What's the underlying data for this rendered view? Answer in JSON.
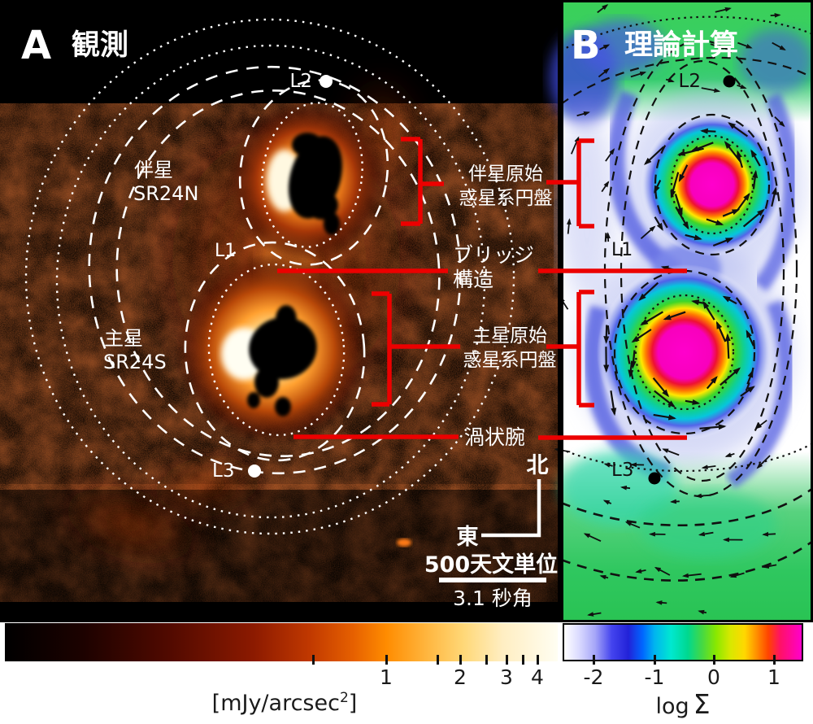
{
  "figure": {
    "panel_a": {
      "panel_letter": "A",
      "panel_title": "観測",
      "companion_label": "伴星",
      "companion_name": "SR24N",
      "primary_label": "主星",
      "primary_name": "SR24S",
      "lagrange_l1": "L1",
      "lagrange_l2": "L2",
      "lagrange_l3": "L3",
      "annotations": {
        "companion_disk_line1": "伴星原始",
        "companion_disk_line2": "惑星系円盤",
        "bridge_line1": "ブリッジ",
        "bridge_line2": "構造",
        "primary_disk_line1": "主星原始",
        "primary_disk_line2": "惑星系円盤",
        "spiral_arm": "渦状腕"
      },
      "compass": {
        "north": "北",
        "east": "東"
      },
      "scalebar": {
        "physical": "500天文単位",
        "angular": "3.1 秒角"
      },
      "colorbar": {
        "tick_labels": [
          "1",
          "2",
          "3",
          "4"
        ],
        "unit_prefix": "[mJy/arcsec",
        "unit_sup": "2",
        "unit_suffix": "]"
      }
    },
    "panel_b": {
      "panel_letter": "B",
      "panel_title": "理論計算",
      "lagrange_l1": "L1",
      "lagrange_l2": "L2",
      "lagrange_l3": "L3",
      "colorbar": {
        "tick_labels": [
          "-2",
          "-1",
          "0",
          "1"
        ],
        "label_log": "log",
        "label_sigma": "Σ"
      }
    },
    "colors": {
      "annotation_red": "#ec0000",
      "contour_white": "#ffffff",
      "contour_black": "#111111"
    }
  }
}
